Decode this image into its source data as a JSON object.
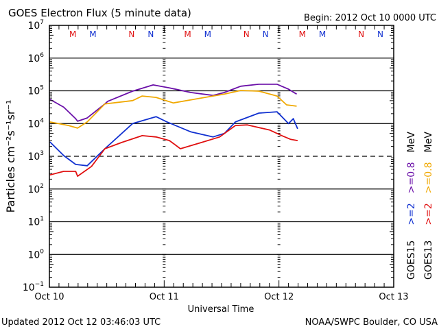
{
  "chart_data": {
    "type": "line",
    "title": "GOES Electron Flux (5 minute data)",
    "begin_label": "Begin: 2012 Oct 10 0000 UTC",
    "xlabel": "Universal Time",
    "ylabel": "Particles cm⁻²s⁻¹sr⁻¹",
    "x_unit": "hours since 2012 Oct 10 0000 UTC",
    "xlim": [
      0,
      72
    ],
    "x_ticks": [
      {
        "hours": 0,
        "label": "Oct 10"
      },
      {
        "hours": 24,
        "label": "Oct 11"
      },
      {
        "hours": 48,
        "label": "Oct 12"
      },
      {
        "hours": 72,
        "label": "Oct 13"
      }
    ],
    "y_scale": "log",
    "ylim_log10": [
      -1,
      7
    ],
    "y_ticks": [
      {
        "exp": 7,
        "base": "10",
        "sup": "7"
      },
      {
        "exp": 6,
        "base": "10",
        "sup": "6"
      },
      {
        "exp": 5,
        "base": "10",
        "sup": "5"
      },
      {
        "exp": 4,
        "base": "10",
        "sup": "4"
      },
      {
        "exp": 3,
        "base": "10",
        "sup": "3"
      },
      {
        "exp": 2,
        "base": "10",
        "sup": "2"
      },
      {
        "exp": 1,
        "base": "10",
        "sup": "1"
      },
      {
        "exp": 0,
        "base": "10",
        "sup": "0"
      },
      {
        "exp": -1,
        "base": "10",
        "sup": "−1"
      }
    ],
    "threshold_log10": 3,
    "markers": [
      {
        "label": "M",
        "hours": 4.9,
        "color": "#e01010"
      },
      {
        "label": "M",
        "hours": 9.1,
        "color": "#1030d0"
      },
      {
        "label": "N",
        "hours": 17.2,
        "color": "#e01010"
      },
      {
        "label": "N",
        "hours": 21.2,
        "color": "#1030d0"
      },
      {
        "label": "M",
        "hours": 28.9,
        "color": "#e01010"
      },
      {
        "label": "M",
        "hours": 33.1,
        "color": "#1030d0"
      },
      {
        "label": "N",
        "hours": 41.2,
        "color": "#e01010"
      },
      {
        "label": "N",
        "hours": 45.2,
        "color": "#1030d0"
      },
      {
        "label": "M",
        "hours": 52.9,
        "color": "#e01010"
      },
      {
        "label": "M",
        "hours": 57.1,
        "color": "#1030d0"
      },
      {
        "label": "N",
        "hours": 65.2,
        "color": "#e01010"
      },
      {
        "label": "N",
        "hours": 69.2,
        "color": "#1030d0"
      }
    ],
    "series": [
      {
        "name": "GOES15 >=0.8 MeV",
        "color": "#6a0fa8",
        "hours": [
          0.1,
          3,
          5.5,
          5.9,
          7.9,
          11.6,
          12.2,
          17.4,
          21.7,
          25.1,
          29.5,
          34.2,
          36.6,
          40,
          43.8,
          47.6,
          50,
          51.7
        ],
        "log10_values": [
          4.74,
          4.5,
          4.15,
          4.07,
          4.17,
          4.6,
          4.68,
          4.99,
          5.18,
          5.09,
          4.95,
          4.86,
          4.95,
          5.14,
          5.2,
          5.2,
          5.05,
          4.9
        ]
      },
      {
        "name": "GOES13 >=0.8 MeV",
        "color": "#f0a800",
        "hours": [
          0.1,
          4,
          5.9,
          7.9,
          11.6,
          17.4,
          19.4,
          22.3,
          25.9,
          31.8,
          36.6,
          40,
          43.8,
          47.6,
          49.6,
          51.7
        ],
        "log10_values": [
          4.05,
          3.94,
          3.86,
          4.05,
          4.6,
          4.7,
          4.84,
          4.8,
          4.63,
          4.78,
          4.9,
          5.01,
          4.99,
          4.84,
          4.57,
          4.53
        ]
      },
      {
        "name": "GOES15 >=2 MeV",
        "color": "#1030d0",
        "hours": [
          0.1,
          3,
          5.5,
          7.9,
          11.6,
          17.4,
          22.3,
          24.6,
          29.5,
          34.2,
          36.6,
          38.9,
          43.8,
          47.6,
          50,
          51,
          51.9
        ],
        "log10_values": [
          3.44,
          3.02,
          2.75,
          2.71,
          3.23,
          4.0,
          4.21,
          4.05,
          3.75,
          3.59,
          3.7,
          4.05,
          4.32,
          4.36,
          4.0,
          4.15,
          3.84
        ]
      },
      {
        "name": "GOES13 >=2 MeV",
        "color": "#e01010",
        "hours": [
          0.1,
          3,
          5.5,
          5.9,
          8.8,
          11.6,
          15.1,
          19.4,
          22.3,
          25.1,
          27.4,
          31.8,
          35.6,
          38.9,
          41.4,
          46.1,
          48.6,
          50.4,
          51.9
        ],
        "log10_values": [
          2.43,
          2.54,
          2.54,
          2.39,
          2.69,
          3.23,
          3.42,
          3.63,
          3.59,
          3.48,
          3.23,
          3.42,
          3.59,
          3.94,
          3.96,
          3.8,
          3.63,
          3.52,
          3.48
        ]
      }
    ],
    "legend": {
      "placement": "right",
      "col1": [
        {
          "text": "GOES15",
          "color": "#000000"
        },
        {
          "text": ">=2",
          "color": "#1030d0"
        },
        {
          "text": ">=0.8",
          "color": "#6a0fa8"
        },
        {
          "text": "MeV",
          "color": "#000000"
        }
      ],
      "col2": [
        {
          "text": "GOES13",
          "color": "#000000"
        },
        {
          "text": ">=2",
          "color": "#e01010"
        },
        {
          "text": ">=0.8",
          "color": "#f0a800"
        },
        {
          "text": "MeV",
          "color": "#000000"
        }
      ]
    },
    "updated": "Updated 2012 Oct 12 03:46:03 UTC",
    "credit": "NOAA/SWPC Boulder, CO USA",
    "grid": true
  }
}
